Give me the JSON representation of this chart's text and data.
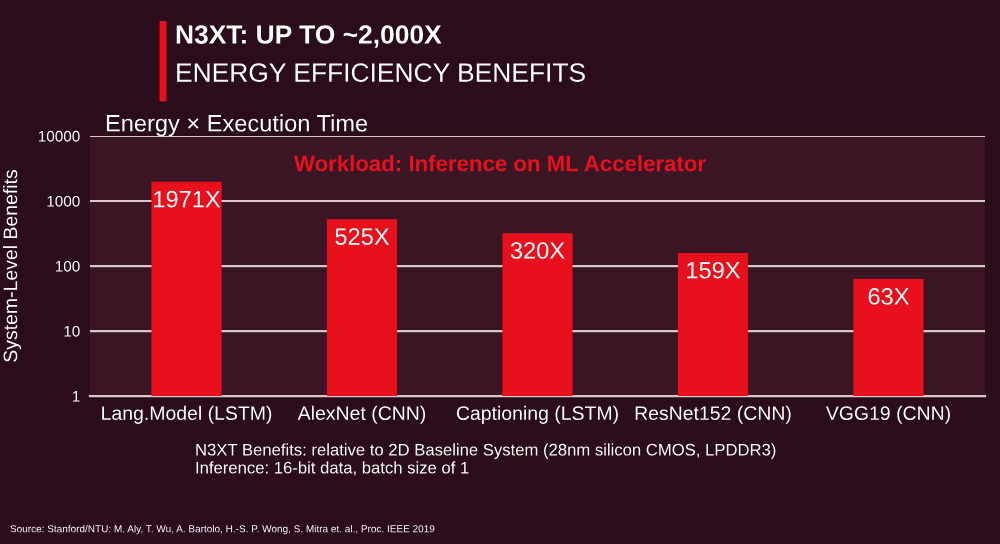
{
  "chart_data": {
    "type": "bar",
    "title": "N3XT: UP TO ~2,000X",
    "subtitle": "ENERGY EFFICIENCY BENEFITS",
    "ylabel": "System-Level Benefits",
    "annotations": [
      "Energy × Execution Time",
      "Workload: Inference on ML Accelerator",
      "N3XT Benefits: relative to 2D Baseline System (28nm silicon CMOS, LPDDR3)\nInference: 16-bit data, batch size of 1",
      "Source: Stanford/NTU: M. Aly, T. Wu, A. Bartolo, H.-S. P. Wong, S. Mitra et. al., Proc. IEEE 2019"
    ],
    "categories": [
      "Lang.Model (LSTM)",
      "AlexNet (CNN)",
      "Captioning (LSTM)",
      "ResNet152 (CNN)",
      "VGG19 (CNN)"
    ],
    "values": [
      1971,
      525,
      320,
      159,
      63
    ],
    "value_labels": [
      "1971X",
      "525X",
      "320X",
      "159X",
      "63X"
    ],
    "color": "#e8101c",
    "log": "y",
    "ylim": [
      1,
      10000
    ],
    "yticks": [
      1,
      10,
      100,
      1000,
      10000
    ],
    "grid": "y"
  }
}
